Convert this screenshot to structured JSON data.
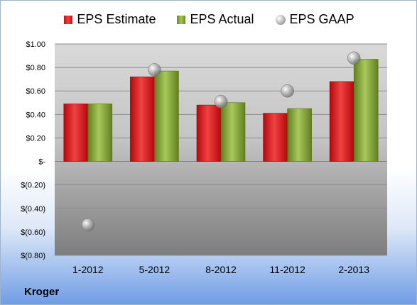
{
  "chart_data": {
    "type": "bar",
    "company": "Kroger",
    "categories": [
      "1-2012",
      "5-2012",
      "8-2012",
      "11-2012",
      "2-2013"
    ],
    "series": [
      {
        "name": "EPS Estimate",
        "kind": "bar",
        "values": [
          0.49,
          0.72,
          0.48,
          0.41,
          0.68
        ],
        "color": "#d7191c"
      },
      {
        "name": "EPS Actual",
        "kind": "bar",
        "values": [
          0.49,
          0.77,
          0.5,
          0.45,
          0.87
        ],
        "color": "#8db43a"
      },
      {
        "name": "EPS GAAP",
        "kind": "scatter",
        "values": [
          -0.54,
          0.78,
          0.51,
          0.6,
          0.88
        ],
        "color": "#a6a6a6"
      }
    ],
    "ylim": [
      -0.8,
      1.0
    ],
    "yticks": [
      1.0,
      0.8,
      0.6,
      0.4,
      0.2,
      0,
      -0.2,
      -0.4,
      -0.6,
      -0.8
    ],
    "ytick_labels": [
      "$1.00",
      "$0.80",
      "$0.60",
      "$0.40",
      "$0.20",
      "$-",
      "$(0.20)",
      "$(0.40)",
      "$(0.60)",
      "$(0.80)"
    ],
    "legend_position": "top",
    "grid": true
  }
}
